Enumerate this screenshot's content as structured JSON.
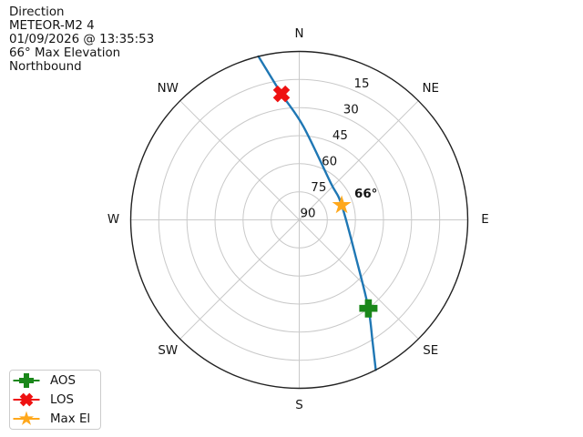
{
  "header": {
    "lines": [
      "Direction",
      "METEOR-M2 4",
      "01/09/2026 @ 13:35:53",
      "66° Max Elevation",
      "Northbound"
    ]
  },
  "chart_data": {
    "type": "line",
    "projection": "polar-azimuth-elevation",
    "orientation": {
      "zero_at": "N",
      "clockwise": true
    },
    "elevation_axis": {
      "horizon_value": 0,
      "center_value": 90,
      "tick_step": 15
    },
    "grid": true,
    "compass_labels": [
      "N",
      "NE",
      "E",
      "SE",
      "S",
      "SW",
      "W",
      "NW"
    ],
    "elevation_rings": [
      15,
      30,
      45,
      60,
      75,
      90
    ],
    "track": {
      "name": "satellite-pass-track",
      "color": "#1f77b4",
      "points_az_el": [
        [
          346,
          0
        ],
        [
          352,
          22
        ],
        [
          2.5,
          40
        ],
        [
          40,
          64
        ],
        [
          71,
          66
        ],
        [
          127,
          51
        ],
        [
          142,
          30
        ],
        [
          149,
          14
        ],
        [
          153,
          0
        ]
      ]
    },
    "markers": [
      {
        "id": "aos",
        "label": "AOS",
        "shape": "plus",
        "color": "#1a871a",
        "az": 142,
        "el": 30
      },
      {
        "id": "los",
        "label": "LOS",
        "shape": "x",
        "color": "#ee1111",
        "az": 352,
        "el": 22
      },
      {
        "id": "max-el",
        "label": "Max El",
        "shape": "star",
        "color": "#ffa81c",
        "az": 71,
        "el": 66
      }
    ],
    "annotation": {
      "text": "66°"
    },
    "legend_position": "lower left",
    "colors": {
      "grid": "#c9c9c9",
      "outline": "#222222",
      "text": "#141414"
    }
  },
  "legend": {
    "items": [
      {
        "label": "AOS",
        "shape": "plus",
        "color": "#1a871a"
      },
      {
        "label": "LOS",
        "shape": "x",
        "color": "#ee1111"
      },
      {
        "label": "Max El",
        "shape": "star",
        "color": "#ffa81c"
      }
    ]
  }
}
